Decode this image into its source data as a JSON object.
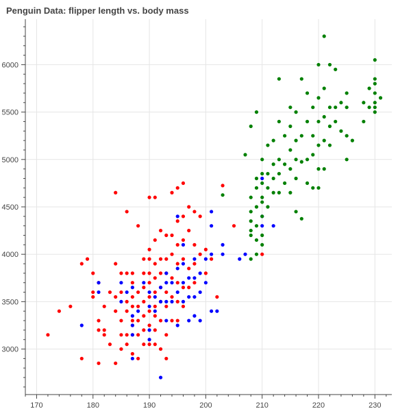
{
  "chart_data": {
    "type": "scatter",
    "title": "Penguin Data: flipper length vs. body mass",
    "xlabel": "",
    "ylabel": "",
    "xlim": [
      168,
      233
    ],
    "ylim": [
      2520,
      6480
    ],
    "x_ticks": [
      170,
      180,
      190,
      200,
      210,
      220,
      230
    ],
    "y_ticks": [
      3000,
      3500,
      4000,
      4500,
      5000,
      5500,
      6000
    ],
    "grid": true,
    "legend": "none",
    "series": [
      {
        "color": "#ff0000",
        "points": [
          [
            172,
            3150
          ],
          [
            174,
            3400
          ],
          [
            176,
            3450
          ],
          [
            178,
            3900
          ],
          [
            178,
            2900
          ],
          [
            179,
            3950
          ],
          [
            180,
            3800
          ],
          [
            180,
            3600
          ],
          [
            180,
            3550
          ],
          [
            181,
            3700
          ],
          [
            181,
            3300
          ],
          [
            181,
            3200
          ],
          [
            181,
            2850
          ],
          [
            182,
            3200
          ],
          [
            182,
            3150
          ],
          [
            182,
            3450
          ],
          [
            183,
            3600
          ],
          [
            183,
            3050
          ],
          [
            184,
            4650
          ],
          [
            184,
            3900
          ],
          [
            184,
            3550
          ],
          [
            184,
            3400
          ],
          [
            184,
            2850
          ],
          [
            185,
            3800
          ],
          [
            185,
            3600
          ],
          [
            185,
            3300
          ],
          [
            185,
            3150
          ],
          [
            185,
            3000
          ],
          [
            186,
            4450
          ],
          [
            186,
            3800
          ],
          [
            186,
            3500
          ],
          [
            186,
            3400
          ],
          [
            186,
            3150
          ],
          [
            186,
            3050
          ],
          [
            187,
            3800
          ],
          [
            187,
            3700
          ],
          [
            187,
            3550
          ],
          [
            187,
            3450
          ],
          [
            187,
            3300
          ],
          [
            187,
            3250
          ],
          [
            187,
            3150
          ],
          [
            187,
            2950
          ],
          [
            188,
            4300
          ],
          [
            188,
            3600
          ],
          [
            188,
            3450
          ],
          [
            188,
            3300
          ],
          [
            188,
            3150
          ],
          [
            188,
            2900
          ],
          [
            189,
            3950
          ],
          [
            189,
            3800
          ],
          [
            189,
            3650
          ],
          [
            189,
            3500
          ],
          [
            189,
            3350
          ],
          [
            189,
            3200
          ],
          [
            189,
            3050
          ],
          [
            190,
            4600
          ],
          [
            190,
            4050
          ],
          [
            190,
            3950
          ],
          [
            190,
            3800
          ],
          [
            190,
            3700
          ],
          [
            190,
            3550
          ],
          [
            190,
            3400
          ],
          [
            190,
            3250
          ],
          [
            190,
            3050
          ],
          [
            191,
            4600
          ],
          [
            191,
            4150
          ],
          [
            191,
            3900
          ],
          [
            191,
            3750
          ],
          [
            191,
            3600
          ],
          [
            191,
            3450
          ],
          [
            191,
            3350
          ],
          [
            191,
            3200
          ],
          [
            191,
            3050
          ],
          [
            192,
            4250
          ],
          [
            192,
            3950
          ],
          [
            192,
            3800
          ],
          [
            192,
            3650
          ],
          [
            192,
            3500
          ],
          [
            192,
            3300
          ],
          [
            192,
            3000
          ],
          [
            193,
            4200
          ],
          [
            193,
            3950
          ],
          [
            193,
            3800
          ],
          [
            193,
            3600
          ],
          [
            193,
            3450
          ],
          [
            193,
            3150
          ],
          [
            193,
            2900
          ],
          [
            194,
            4650
          ],
          [
            194,
            4200
          ],
          [
            194,
            4000
          ],
          [
            194,
            3750
          ],
          [
            194,
            3550
          ],
          [
            194,
            3300
          ],
          [
            195,
            4700
          ],
          [
            195,
            4350
          ],
          [
            195,
            4100
          ],
          [
            195,
            3900
          ],
          [
            195,
            3700
          ],
          [
            195,
            3500
          ],
          [
            195,
            3300
          ],
          [
            196,
            4750
          ],
          [
            196,
            4400
          ],
          [
            196,
            4150
          ],
          [
            196,
            3950
          ],
          [
            196,
            3650
          ],
          [
            196,
            3450
          ],
          [
            197,
            4500
          ],
          [
            197,
            4250
          ],
          [
            197,
            3850
          ],
          [
            197,
            3650
          ],
          [
            198,
            4450
          ],
          [
            198,
            4100
          ],
          [
            198,
            3900
          ],
          [
            198,
            3700
          ],
          [
            199,
            4400
          ],
          [
            199,
            4000
          ],
          [
            200,
            4050
          ],
          [
            200,
            3800
          ],
          [
            201,
            3950
          ],
          [
            202,
            3550
          ],
          [
            203,
            4725
          ],
          [
            205,
            4300
          ],
          [
            210,
            4000
          ]
        ]
      },
      {
        "color": "#0000ff",
        "points": [
          [
            178,
            3250
          ],
          [
            181,
            3700
          ],
          [
            181,
            3600
          ],
          [
            185,
            3700
          ],
          [
            185,
            3500
          ],
          [
            186,
            3600
          ],
          [
            187,
            3650
          ],
          [
            187,
            3350
          ],
          [
            187,
            3250
          ],
          [
            187,
            3150
          ],
          [
            187,
            2900
          ],
          [
            188,
            3400
          ],
          [
            189,
            3700
          ],
          [
            190,
            3600
          ],
          [
            190,
            3450
          ],
          [
            190,
            3200
          ],
          [
            190,
            3100
          ],
          [
            191,
            3550
          ],
          [
            191,
            3400
          ],
          [
            192,
            3650
          ],
          [
            192,
            3500
          ],
          [
            192,
            2700
          ],
          [
            193,
            3800
          ],
          [
            193,
            3700
          ],
          [
            193,
            3500
          ],
          [
            193,
            3300
          ],
          [
            194,
            3700
          ],
          [
            194,
            3500
          ],
          [
            195,
            4400
          ],
          [
            195,
            3850
          ],
          [
            195,
            3600
          ],
          [
            195,
            3250
          ],
          [
            196,
            4100
          ],
          [
            196,
            3900
          ],
          [
            196,
            3700
          ],
          [
            196,
            3500
          ],
          [
            197,
            3750
          ],
          [
            197,
            3550
          ],
          [
            197,
            3300
          ],
          [
            198,
            3950
          ],
          [
            198,
            3750
          ],
          [
            198,
            3550
          ],
          [
            198,
            3350
          ],
          [
            199,
            3800
          ],
          [
            199,
            3600
          ],
          [
            199,
            3300
          ],
          [
            200,
            3950
          ],
          [
            200,
            3700
          ],
          [
            201,
            4450
          ],
          [
            201,
            4300
          ],
          [
            201,
            4000
          ],
          [
            201,
            3400
          ],
          [
            202,
            3400
          ],
          [
            203,
            4100
          ],
          [
            203,
            4000
          ],
          [
            206,
            3950
          ],
          [
            207,
            4000
          ],
          [
            210,
            4800
          ],
          [
            210,
            4400
          ],
          [
            210,
            4300
          ],
          [
            212,
            4300
          ]
        ]
      },
      {
        "color": "#008000",
        "points": [
          [
            203,
            4625
          ],
          [
            207,
            5050
          ],
          [
            208,
            5350
          ],
          [
            208,
            4600
          ],
          [
            208,
            4450
          ],
          [
            208,
            4350
          ],
          [
            208,
            4250
          ],
          [
            208,
            4200
          ],
          [
            208,
            3950
          ],
          [
            209,
            5500
          ],
          [
            209,
            4800
          ],
          [
            209,
            4700
          ],
          [
            209,
            4500
          ],
          [
            209,
            4300
          ],
          [
            209,
            4150
          ],
          [
            209,
            4000
          ],
          [
            210,
            5000
          ],
          [
            210,
            4850
          ],
          [
            210,
            4750
          ],
          [
            210,
            4600
          ],
          [
            210,
            4550
          ],
          [
            210,
            4400
          ],
          [
            210,
            4200
          ],
          [
            210,
            4100
          ],
          [
            211,
            5150
          ],
          [
            211,
            4850
          ],
          [
            211,
            4700
          ],
          [
            211,
            4500
          ],
          [
            212,
            5200
          ],
          [
            212,
            4950
          ],
          [
            212,
            4800
          ],
          [
            212,
            4650
          ],
          [
            213,
            5850
          ],
          [
            213,
            5400
          ],
          [
            213,
            5000
          ],
          [
            213,
            4850
          ],
          [
            213,
            4650
          ],
          [
            214,
            5250
          ],
          [
            214,
            4950
          ],
          [
            214,
            4750
          ],
          [
            215,
            5550
          ],
          [
            215,
            5350
          ],
          [
            215,
            5100
          ],
          [
            215,
            4900
          ],
          [
            215,
            4650
          ],
          [
            216,
            5500
          ],
          [
            216,
            5200
          ],
          [
            216,
            5000
          ],
          [
            216,
            4800
          ],
          [
            216,
            4450
          ],
          [
            217,
            5850
          ],
          [
            217,
            5250
          ],
          [
            217,
            4975
          ],
          [
            217,
            4375
          ],
          [
            218,
            5700
          ],
          [
            218,
            5400
          ],
          [
            218,
            5000
          ],
          [
            218,
            4750
          ],
          [
            219,
            5550
          ],
          [
            219,
            5250
          ],
          [
            219,
            5050
          ],
          [
            219,
            4700
          ],
          [
            220,
            6000
          ],
          [
            220,
            5650
          ],
          [
            220,
            5400
          ],
          [
            220,
            5150
          ],
          [
            220,
            4900
          ],
          [
            220,
            4700
          ],
          [
            221,
            6300
          ],
          [
            221,
            5750
          ],
          [
            221,
            5450
          ],
          [
            221,
            5200
          ],
          [
            221,
            4900
          ],
          [
            222,
            6000
          ],
          [
            222,
            5550
          ],
          [
            222,
            5350
          ],
          [
            222,
            5150
          ],
          [
            223,
            5950
          ],
          [
            223,
            5550
          ],
          [
            223,
            5400
          ],
          [
            224,
            5600
          ],
          [
            224,
            5300
          ],
          [
            225,
            5700
          ],
          [
            225,
            5550
          ],
          [
            225,
            5250
          ],
          [
            225,
            5000
          ],
          [
            226,
            5200
          ],
          [
            228,
            5600
          ],
          [
            228,
            5400
          ],
          [
            229,
            5750
          ],
          [
            229,
            5550
          ],
          [
            230,
            5800
          ],
          [
            230,
            5600
          ],
          [
            230,
            5700
          ],
          [
            230,
            5850
          ],
          [
            230,
            6050
          ],
          [
            230,
            5550
          ],
          [
            230,
            5500
          ],
          [
            231,
            5650
          ]
        ]
      }
    ]
  }
}
